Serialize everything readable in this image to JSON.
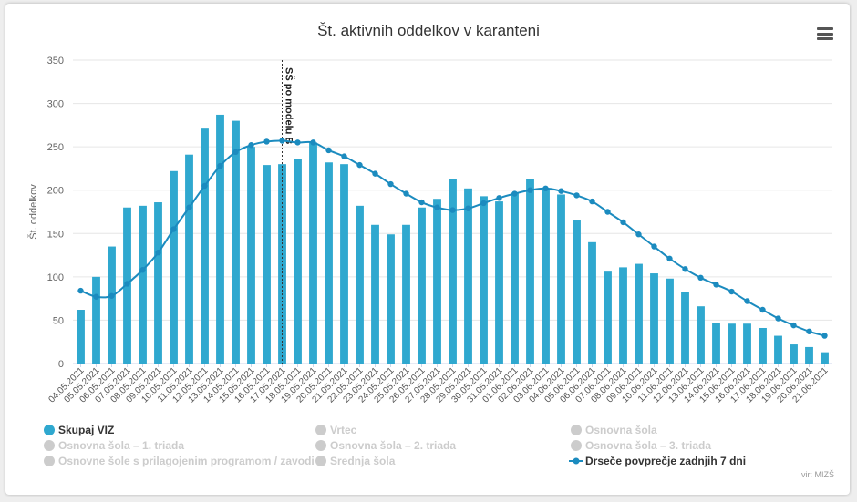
{
  "chart_data": {
    "type": "bar+line",
    "title": "Št. aktivnih oddelkov v karanteni",
    "ylabel": "Št. oddelkov",
    "xlabel": "",
    "ylim": [
      0,
      350
    ],
    "yticks": [
      0,
      50,
      100,
      150,
      200,
      250,
      300,
      350
    ],
    "grid": true,
    "categories": [
      "04.05.2021",
      "05.05.2021",
      "06.05.2021",
      "07.05.2021",
      "08.05.2021",
      "09.05.2021",
      "10.05.2021",
      "11.05.2021",
      "12.05.2021",
      "13.05.2021",
      "14.05.2021",
      "15.05.2021",
      "16.05.2021",
      "17.05.2021",
      "18.05.2021",
      "19.05.2021",
      "20.05.2021",
      "21.05.2021",
      "22.05.2021",
      "23.05.2021",
      "24.05.2021",
      "25.05.2021",
      "26.05.2021",
      "27.05.2021",
      "28.05.2021",
      "29.05.2021",
      "30.05.2021",
      "31.05.2021",
      "01.06.2021",
      "02.06.2021",
      "03.06.2021",
      "04.06.2021",
      "05.06.2021",
      "06.06.2021",
      "07.06.2021",
      "08.06.2021",
      "09.06.2021",
      "10.06.2021",
      "11.06.2021",
      "12.06.2021",
      "13.06.2021",
      "14.06.2021",
      "15.06.2021",
      "16.06.2021",
      "17.06.2021",
      "18.06.2021",
      "19.06.2021",
      "20.06.2021",
      "21.06.2021"
    ],
    "series": [
      {
        "name": "Skupaj VIZ",
        "type": "bar",
        "color": "#2fa8cf",
        "values": [
          62,
          100,
          135,
          180,
          182,
          186,
          222,
          241,
          271,
          287,
          280,
          250,
          229,
          230,
          236,
          255,
          232,
          230,
          182,
          160,
          149,
          160,
          180,
          190,
          213,
          202,
          193,
          187,
          197,
          213,
          200,
          195,
          165,
          140,
          106,
          111,
          115,
          104,
          98,
          83,
          66,
          47,
          46,
          46,
          41,
          32,
          22,
          19,
          13
        ]
      },
      {
        "name": "Drseče povprečje zadnjih 7 dni",
        "type": "line",
        "color": "#1b8bbf",
        "values": [
          84,
          77,
          78,
          92,
          108,
          128,
          155,
          180,
          205,
          228,
          244,
          252,
          256,
          257,
          255,
          255,
          246,
          239,
          229,
          219,
          207,
          196,
          186,
          180,
          177,
          179,
          185,
          191,
          196,
          200,
          202,
          199,
          194,
          187,
          175,
          163,
          149,
          135,
          121,
          109,
          99,
          91,
          83,
          72,
          62,
          52,
          44,
          37,
          32
        ]
      }
    ],
    "annotations": [
      {
        "text": "SŠ po modelu B",
        "at_category": "17.05.2021"
      }
    ]
  },
  "legend": [
    {
      "label": "Skupaj VIZ",
      "active": true,
      "kind": "dot",
      "color": "#2fa8cf"
    },
    {
      "label": "Vrtec",
      "active": false,
      "kind": "dot",
      "color": "#cccccc"
    },
    {
      "label": "Osnovna šola",
      "active": false,
      "kind": "dot",
      "color": "#cccccc"
    },
    {
      "label": "Osnovna šola – 1. triada",
      "active": false,
      "kind": "dot",
      "color": "#cccccc"
    },
    {
      "label": "Osnovna šola – 2. triada",
      "active": false,
      "kind": "dot",
      "color": "#cccccc"
    },
    {
      "label": "Osnovna šola – 3. triada",
      "active": false,
      "kind": "dot",
      "color": "#cccccc"
    },
    {
      "label": "Osnovne šole s prilagojenim programom / zavodi",
      "active": false,
      "kind": "dot",
      "color": "#cccccc"
    },
    {
      "label": "Srednja šola",
      "active": false,
      "kind": "dot",
      "color": "#cccccc"
    },
    {
      "label": "Drseče povprečje zadnjih 7 dni",
      "active": true,
      "kind": "line",
      "color": "#1b8bbf"
    }
  ],
  "credit": "vir: MIZŠ",
  "menu_icon": "hamburger-menu-icon"
}
